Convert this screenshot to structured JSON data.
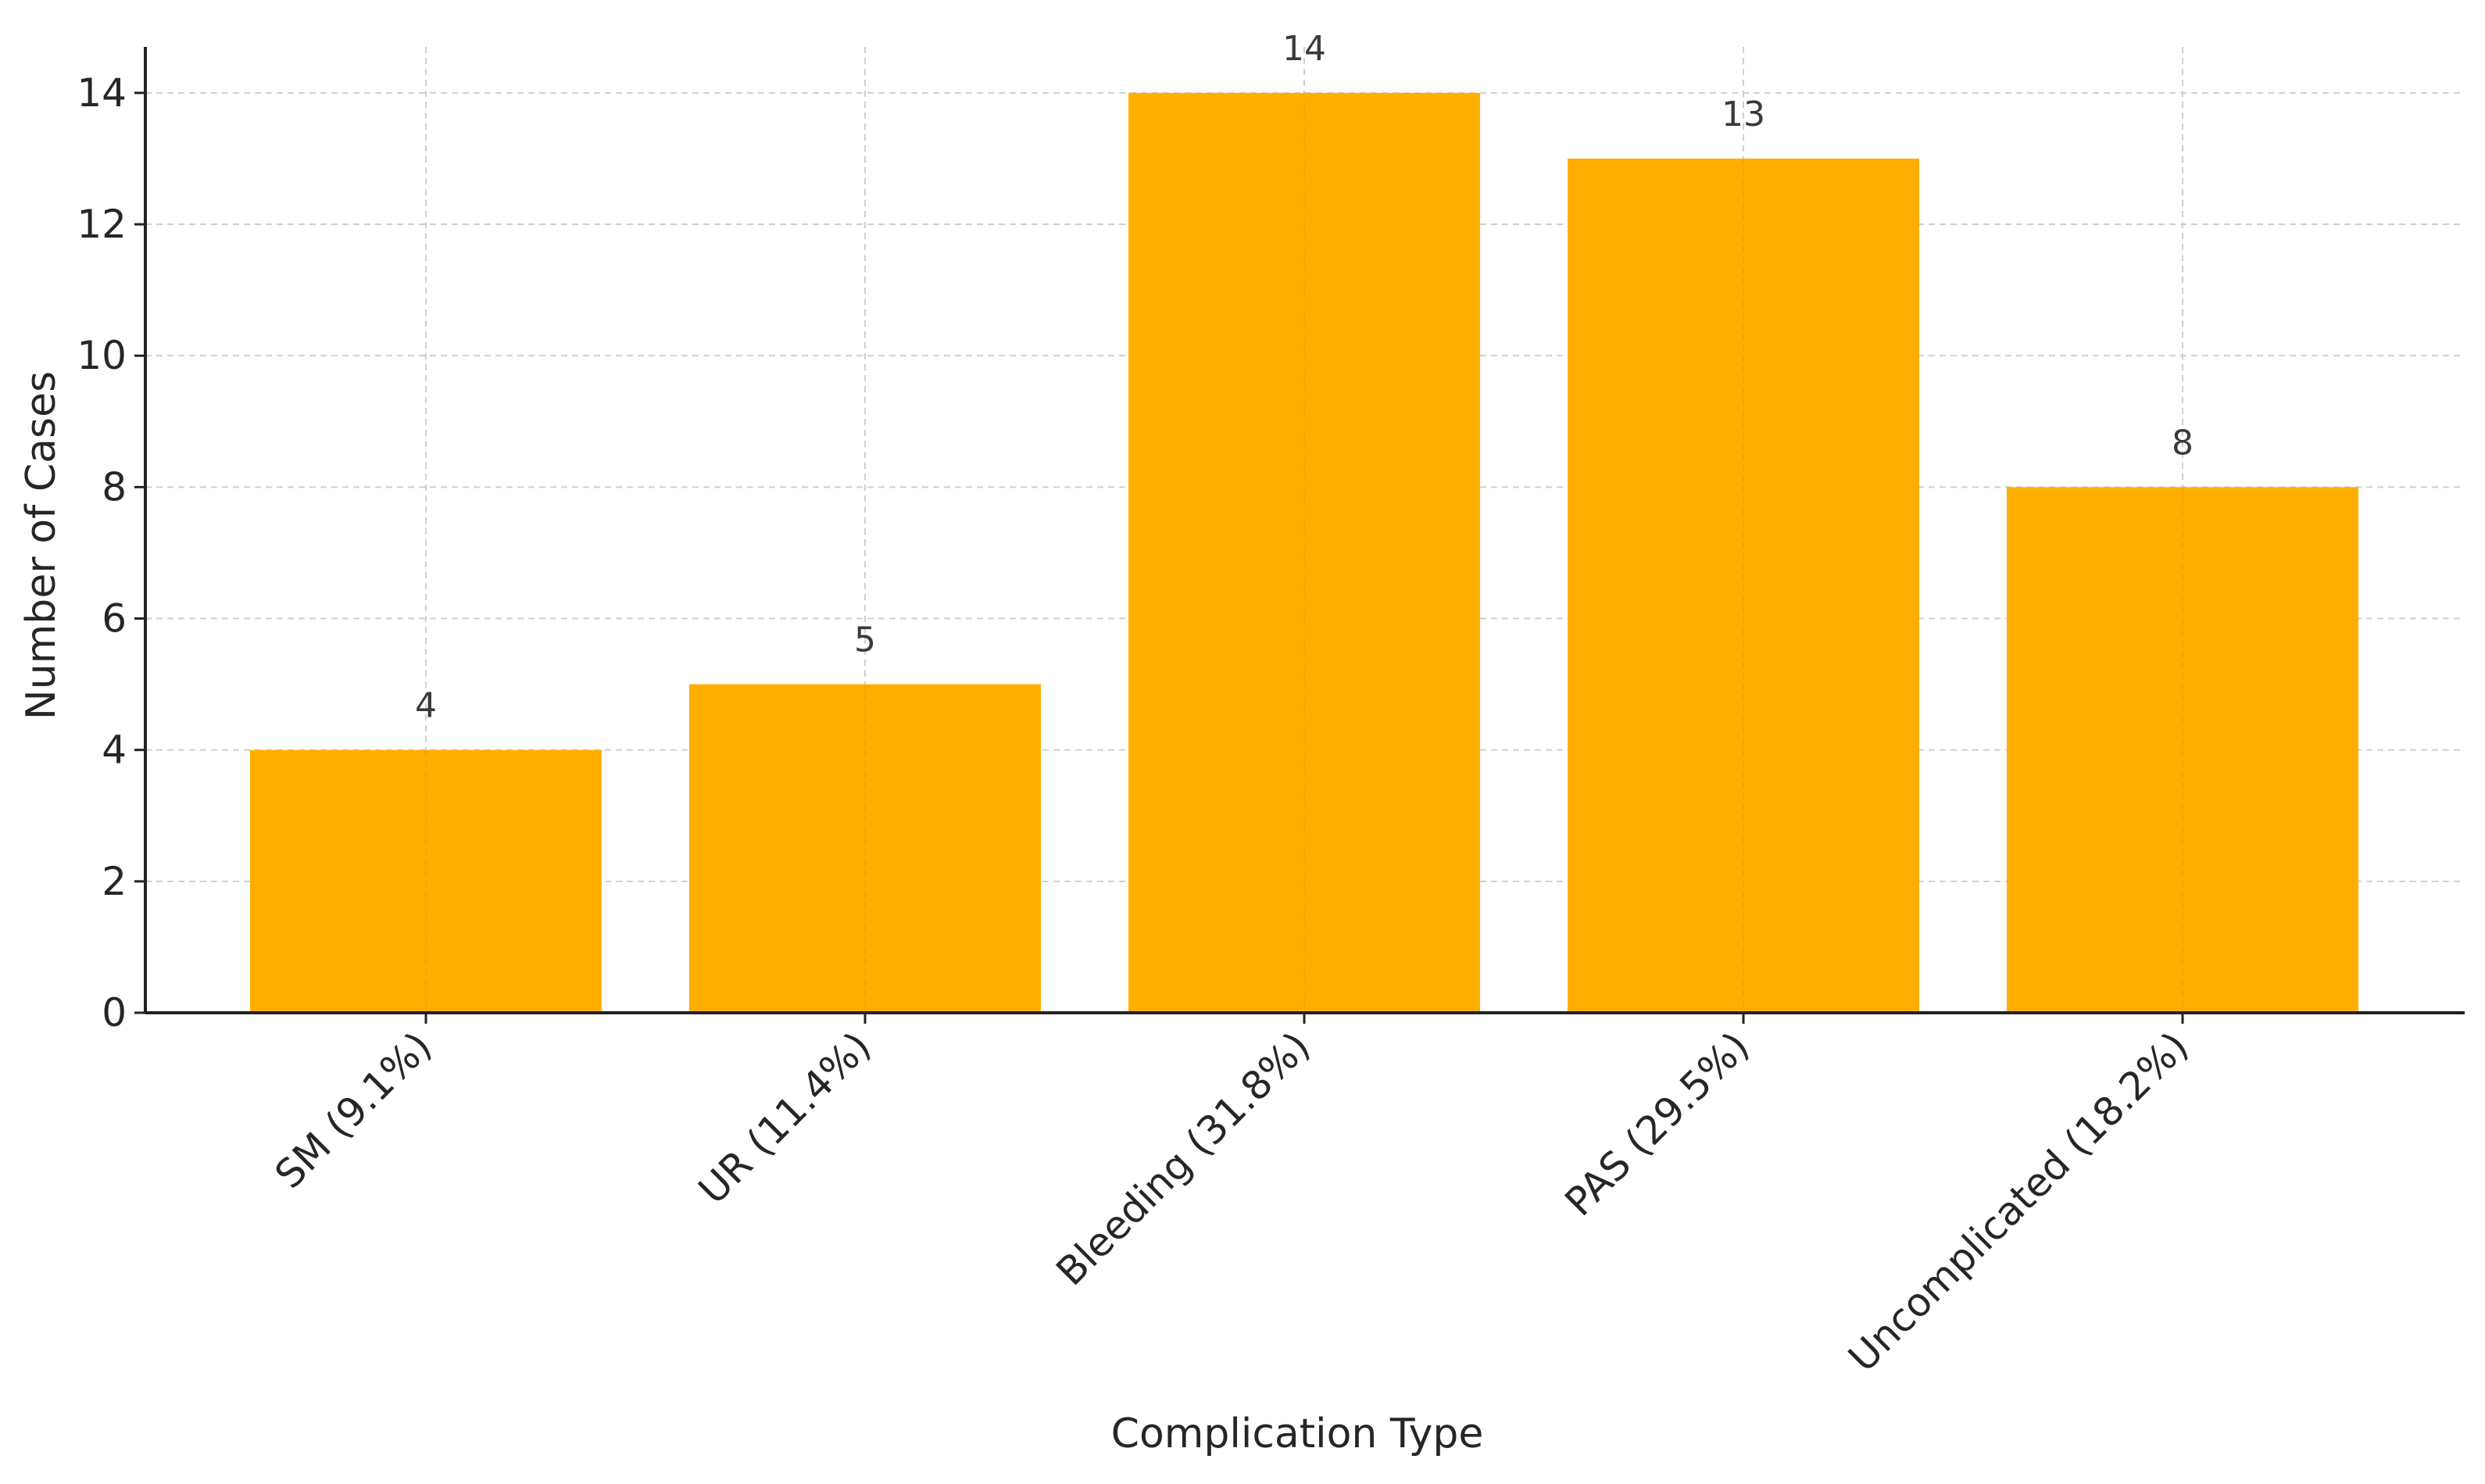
{
  "chart_data": {
    "type": "bar",
    "categories": [
      "SM (9.1%)",
      "UR (11.4%)",
      "Bleeding (31.8%)",
      "PAS (29.5%)",
      "Uncomplicated (18.2%)"
    ],
    "values": [
      4,
      5,
      14,
      13,
      8
    ],
    "value_labels": [
      "4",
      "5",
      "14",
      "13",
      "8"
    ],
    "xlabel": "Complication Type",
    "ylabel": "Number of Cases",
    "ylim": [
      0,
      14.7
    ],
    "yticks": [
      0,
      2,
      4,
      6,
      8,
      10,
      12,
      14
    ],
    "bar_color": "#FFAE00",
    "grid": true
  }
}
